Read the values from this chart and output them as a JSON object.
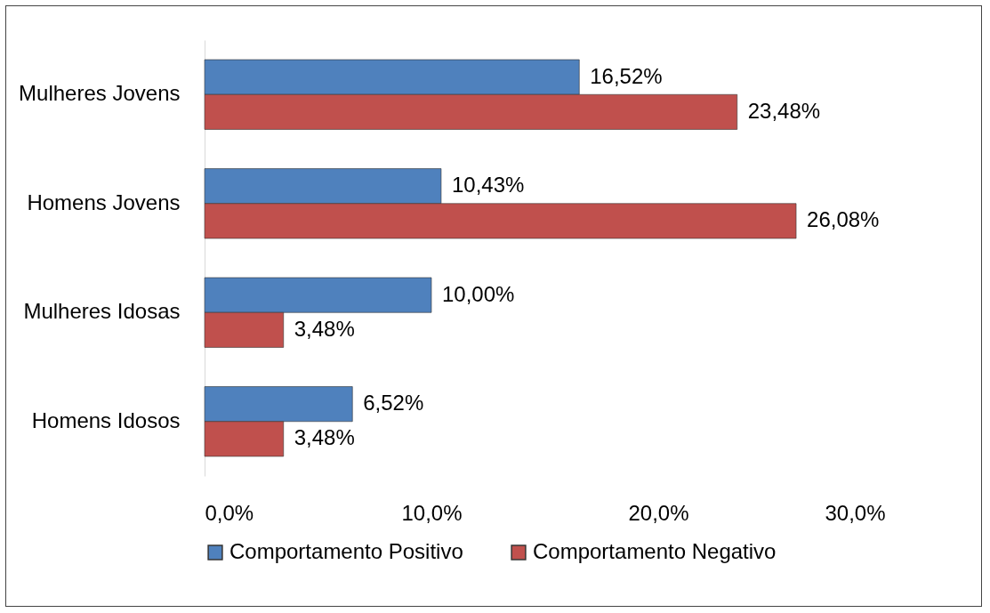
{
  "chart_data": {
    "type": "bar",
    "orientation": "horizontal",
    "categories": [
      "Mulheres Jovens",
      "Homens Jovens",
      "Mulheres Idosas",
      "Homens Idosos"
    ],
    "series": [
      {
        "name": "Comportamento Positivo",
        "color": "#4f81bd",
        "values": [
          16.52,
          10.43,
          10.0,
          6.52
        ],
        "value_labels": [
          "16,52%",
          "10,43%",
          "10,00%",
          "6,52%"
        ]
      },
      {
        "name": "Comportamento Negativo",
        "color": "#c0504d",
        "values": [
          23.48,
          26.08,
          3.48,
          3.48
        ],
        "value_labels": [
          "23,48%",
          "26,08%",
          "3,48%",
          "3,48%"
        ]
      }
    ],
    "xlim": [
      0,
      30
    ],
    "xticks": [
      {
        "value": 0,
        "label": "0,0%"
      },
      {
        "value": 10,
        "label": "10,0%"
      },
      {
        "value": 20,
        "label": "20,0%"
      },
      {
        "value": 30,
        "label": "30,0%"
      }
    ],
    "grid": false,
    "legend": "bottom"
  }
}
